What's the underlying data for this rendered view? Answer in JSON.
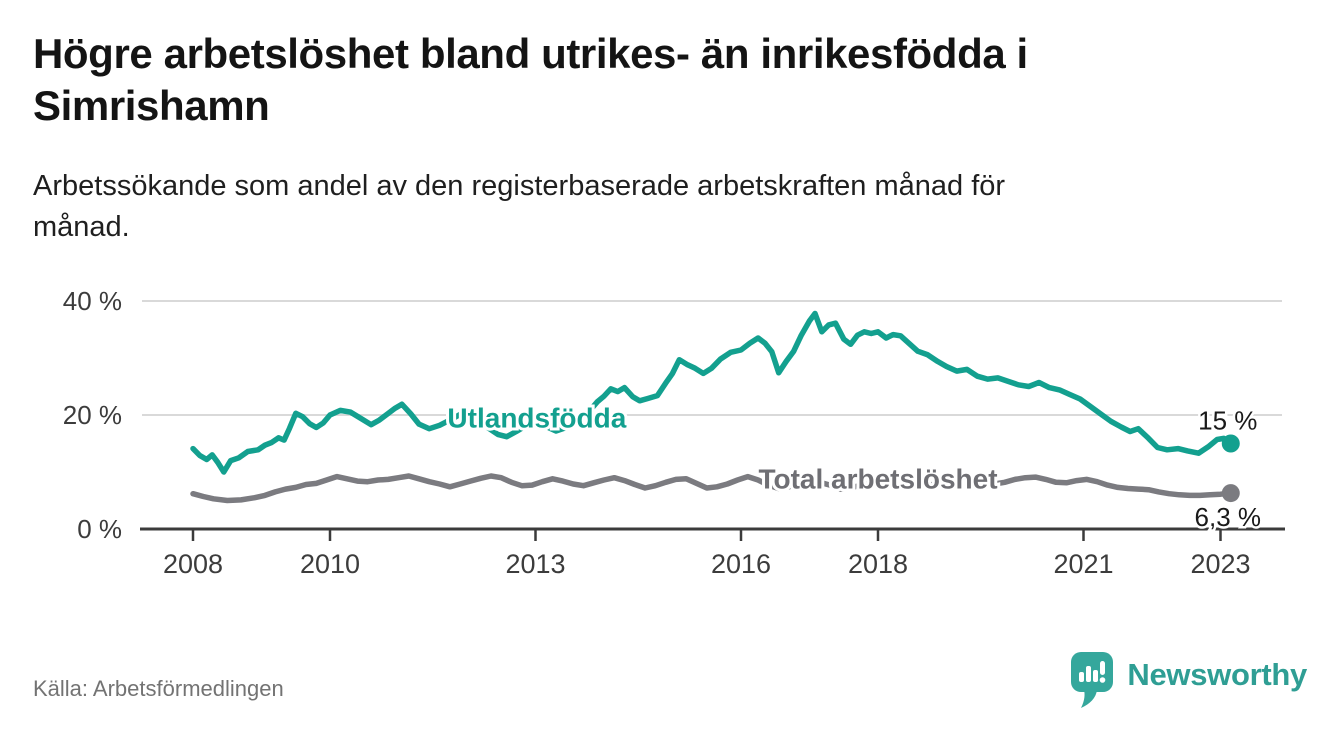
{
  "page": {
    "title": "Högre arbetslöshet bland utrikes- än inrikesfödda i Simrishamn",
    "title_lines": [
      "Högre arbetslöshet bland utrikes- än inrikesfödda i",
      "Simrishamn"
    ],
    "subtitle": "Arbetssökande som andel av den registerbaserade arbetskraften månad för månad.",
    "subtitle_lines": [
      "Arbetssökande som andel av den registerbaserade arbetskraften månad för",
      "månad."
    ],
    "source": "Källa: Arbetsförmedlingen",
    "brand": "Newsworthy"
  },
  "colors": {
    "accent_teal": "#13a08f",
    "series_gray": "#7b7b80",
    "grid": "#d9d9d9",
    "axis": "#3b3b3b",
    "tick_text": "#3c3c3c",
    "value_text": "#1a1a1a",
    "total_label": "#6f6f74",
    "logo_teal": "#35a79c",
    "source_text": "#737373"
  },
  "chart_data": {
    "type": "line",
    "title": "Högre arbetslöshet bland utrikes- än inrikesfödda i Simrishamn",
    "subtitle": "Arbetssökande som andel av den registerbaserade arbetskraften månad för månad.",
    "source": "Källa: Arbetsförmedlingen",
    "grid": "horizontal",
    "legend_position": "inline-labels",
    "xlim": [
      2007.25,
      2023.9
    ],
    "ylim": [
      0,
      42
    ],
    "x_ticks": [
      2008,
      2010,
      2013,
      2016,
      2018,
      2021,
      2023
    ],
    "y_ticks": [
      {
        "value": 0,
        "label": "0 %"
      },
      {
        "value": 20,
        "label": "20 %"
      },
      {
        "value": 40,
        "label": "40 %"
      }
    ],
    "series": [
      {
        "name": "Utlandsfödda",
        "slug": "utlandsfodda",
        "color": "#13a08f",
        "label_color": "#13a08f",
        "label_pos": {
          "year": 2013.02,
          "value": 19.6
        },
        "end_label": "15 %",
        "end_value": 15.0,
        "end_label_side": "above",
        "points": [
          [
            2008.0,
            14.1
          ],
          [
            2008.1,
            12.9
          ],
          [
            2008.2,
            12.2
          ],
          [
            2008.28,
            13.0
          ],
          [
            2008.36,
            11.7
          ],
          [
            2008.45,
            10.0
          ],
          [
            2008.55,
            12.0
          ],
          [
            2008.67,
            12.5
          ],
          [
            2008.8,
            13.6
          ],
          [
            2008.95,
            13.9
          ],
          [
            2009.05,
            14.7
          ],
          [
            2009.15,
            15.2
          ],
          [
            2009.25,
            16.0
          ],
          [
            2009.33,
            15.6
          ],
          [
            2009.41,
            17.7
          ],
          [
            2009.5,
            20.3
          ],
          [
            2009.6,
            19.7
          ],
          [
            2009.7,
            18.5
          ],
          [
            2009.8,
            17.8
          ],
          [
            2009.9,
            18.6
          ],
          [
            2010.0,
            20.0
          ],
          [
            2010.15,
            20.8
          ],
          [
            2010.3,
            20.5
          ],
          [
            2010.45,
            19.4
          ],
          [
            2010.6,
            18.3
          ],
          [
            2010.72,
            19.1
          ],
          [
            2010.84,
            20.2
          ],
          [
            2010.95,
            21.2
          ],
          [
            2011.05,
            21.9
          ],
          [
            2011.18,
            20.2
          ],
          [
            2011.3,
            18.4
          ],
          [
            2011.45,
            17.6
          ],
          [
            2011.6,
            18.2
          ],
          [
            2011.75,
            19.1
          ],
          [
            2011.9,
            20.1
          ],
          [
            2012.02,
            20.6
          ],
          [
            2012.15,
            19.4
          ],
          [
            2012.3,
            17.8
          ],
          [
            2012.45,
            16.6
          ],
          [
            2012.58,
            16.2
          ],
          [
            2012.72,
            17.1
          ],
          [
            2012.86,
            18.1
          ],
          [
            2013.0,
            18.9
          ],
          [
            2013.15,
            18.0
          ],
          [
            2013.3,
            17.2
          ],
          [
            2013.45,
            17.8
          ],
          [
            2013.6,
            18.8
          ],
          [
            2013.75,
            20.2
          ],
          [
            2013.9,
            22.3
          ],
          [
            2014.0,
            23.3
          ],
          [
            2014.1,
            24.6
          ],
          [
            2014.2,
            24.1
          ],
          [
            2014.3,
            24.8
          ],
          [
            2014.42,
            23.2
          ],
          [
            2014.52,
            22.5
          ],
          [
            2014.64,
            22.9
          ],
          [
            2014.78,
            23.4
          ],
          [
            2014.9,
            25.6
          ],
          [
            2015.0,
            27.3
          ],
          [
            2015.1,
            29.7
          ],
          [
            2015.22,
            28.8
          ],
          [
            2015.33,
            28.2
          ],
          [
            2015.45,
            27.3
          ],
          [
            2015.57,
            28.2
          ],
          [
            2015.7,
            29.8
          ],
          [
            2015.85,
            31.0
          ],
          [
            2016.0,
            31.4
          ],
          [
            2016.13,
            32.6
          ],
          [
            2016.25,
            33.5
          ],
          [
            2016.35,
            32.6
          ],
          [
            2016.45,
            31.1
          ],
          [
            2016.55,
            27.4
          ],
          [
            2016.66,
            29.4
          ],
          [
            2016.77,
            31.2
          ],
          [
            2016.88,
            34.0
          ],
          [
            2017.0,
            36.5
          ],
          [
            2017.08,
            37.8
          ],
          [
            2017.18,
            34.6
          ],
          [
            2017.28,
            35.8
          ],
          [
            2017.38,
            36.1
          ],
          [
            2017.5,
            33.3
          ],
          [
            2017.6,
            32.4
          ],
          [
            2017.7,
            34.0
          ],
          [
            2017.8,
            34.6
          ],
          [
            2017.9,
            34.3
          ],
          [
            2018.0,
            34.6
          ],
          [
            2018.12,
            33.5
          ],
          [
            2018.22,
            34.1
          ],
          [
            2018.33,
            33.9
          ],
          [
            2018.45,
            32.6
          ],
          [
            2018.58,
            31.2
          ],
          [
            2018.72,
            30.6
          ],
          [
            2018.87,
            29.4
          ],
          [
            2019.0,
            28.5
          ],
          [
            2019.15,
            27.7
          ],
          [
            2019.3,
            28.0
          ],
          [
            2019.45,
            26.8
          ],
          [
            2019.6,
            26.3
          ],
          [
            2019.75,
            26.5
          ],
          [
            2019.9,
            25.9
          ],
          [
            2020.05,
            25.3
          ],
          [
            2020.2,
            25.0
          ],
          [
            2020.35,
            25.7
          ],
          [
            2020.5,
            24.8
          ],
          [
            2020.65,
            24.4
          ],
          [
            2020.8,
            23.6
          ],
          [
            2020.95,
            22.8
          ],
          [
            2021.1,
            21.5
          ],
          [
            2021.25,
            20.2
          ],
          [
            2021.4,
            18.9
          ],
          [
            2021.55,
            17.9
          ],
          [
            2021.68,
            17.1
          ],
          [
            2021.8,
            17.6
          ],
          [
            2021.95,
            15.9
          ],
          [
            2022.08,
            14.3
          ],
          [
            2022.22,
            13.9
          ],
          [
            2022.38,
            14.1
          ],
          [
            2022.52,
            13.7
          ],
          [
            2022.68,
            13.3
          ],
          [
            2022.83,
            14.5
          ],
          [
            2022.95,
            15.7
          ],
          [
            2023.05,
            15.9
          ],
          [
            2023.15,
            15.0
          ]
        ]
      },
      {
        "name": "Total arbetslöshet",
        "slug": "total-arbetsloshet",
        "color": "#7b7b80",
        "label_color": "#6f6f74",
        "label_pos": {
          "year": 2018.0,
          "value": 8.9
        },
        "end_label": "6,3 %",
        "end_value": 6.3,
        "end_label_side": "below",
        "points": [
          [
            2008.0,
            6.2
          ],
          [
            2008.15,
            5.7
          ],
          [
            2008.3,
            5.3
          ],
          [
            2008.5,
            5.0
          ],
          [
            2008.7,
            5.1
          ],
          [
            2008.9,
            5.5
          ],
          [
            2009.05,
            5.9
          ],
          [
            2009.2,
            6.5
          ],
          [
            2009.35,
            7.0
          ],
          [
            2009.5,
            7.3
          ],
          [
            2009.65,
            7.8
          ],
          [
            2009.8,
            8.0
          ],
          [
            2009.95,
            8.6
          ],
          [
            2010.1,
            9.2
          ],
          [
            2010.25,
            8.8
          ],
          [
            2010.4,
            8.4
          ],
          [
            2010.55,
            8.3
          ],
          [
            2010.7,
            8.6
          ],
          [
            2010.85,
            8.7
          ],
          [
            2011.0,
            9.0
          ],
          [
            2011.15,
            9.3
          ],
          [
            2011.3,
            8.8
          ],
          [
            2011.45,
            8.3
          ],
          [
            2011.6,
            7.9
          ],
          [
            2011.75,
            7.4
          ],
          [
            2011.9,
            7.9
          ],
          [
            2012.05,
            8.4
          ],
          [
            2012.2,
            8.9
          ],
          [
            2012.35,
            9.3
          ],
          [
            2012.5,
            9.0
          ],
          [
            2012.65,
            8.2
          ],
          [
            2012.8,
            7.6
          ],
          [
            2012.95,
            7.7
          ],
          [
            2013.1,
            8.3
          ],
          [
            2013.25,
            8.8
          ],
          [
            2013.4,
            8.4
          ],
          [
            2013.55,
            7.9
          ],
          [
            2013.7,
            7.6
          ],
          [
            2013.85,
            8.1
          ],
          [
            2014.0,
            8.6
          ],
          [
            2014.15,
            9.0
          ],
          [
            2014.3,
            8.5
          ],
          [
            2014.45,
            7.8
          ],
          [
            2014.6,
            7.2
          ],
          [
            2014.75,
            7.6
          ],
          [
            2014.9,
            8.2
          ],
          [
            2015.05,
            8.7
          ],
          [
            2015.2,
            8.8
          ],
          [
            2015.35,
            8.0
          ],
          [
            2015.5,
            7.2
          ],
          [
            2015.65,
            7.4
          ],
          [
            2015.8,
            7.9
          ],
          [
            2015.95,
            8.6
          ],
          [
            2016.1,
            9.2
          ],
          [
            2016.25,
            8.6
          ],
          [
            2016.4,
            7.7
          ],
          [
            2016.55,
            7.1
          ],
          [
            2016.7,
            7.4
          ],
          [
            2016.85,
            8.0
          ],
          [
            2017.0,
            8.5
          ],
          [
            2017.15,
            8.2
          ],
          [
            2017.3,
            7.7
          ],
          [
            2017.45,
            7.0
          ],
          [
            2017.6,
            7.2
          ],
          [
            2017.75,
            7.7
          ],
          [
            2017.9,
            8.0
          ],
          [
            2018.05,
            8.3
          ],
          [
            2018.2,
            8.0
          ],
          [
            2018.35,
            7.6
          ],
          [
            2018.5,
            7.3
          ],
          [
            2018.65,
            7.5
          ],
          [
            2018.8,
            7.8
          ],
          [
            2018.95,
            8.1
          ],
          [
            2019.1,
            8.0
          ],
          [
            2019.25,
            7.7
          ],
          [
            2019.4,
            7.5
          ],
          [
            2019.55,
            7.7
          ],
          [
            2019.7,
            7.9
          ],
          [
            2019.85,
            8.2
          ],
          [
            2020.0,
            8.7
          ],
          [
            2020.15,
            9.0
          ],
          [
            2020.3,
            9.1
          ],
          [
            2020.45,
            8.7
          ],
          [
            2020.6,
            8.2
          ],
          [
            2020.75,
            8.1
          ],
          [
            2020.9,
            8.5
          ],
          [
            2021.05,
            8.7
          ],
          [
            2021.2,
            8.3
          ],
          [
            2021.35,
            7.7
          ],
          [
            2021.5,
            7.3
          ],
          [
            2021.65,
            7.1
          ],
          [
            2021.8,
            7.0
          ],
          [
            2021.95,
            6.9
          ],
          [
            2022.1,
            6.5
          ],
          [
            2022.25,
            6.2
          ],
          [
            2022.4,
            6.0
          ],
          [
            2022.55,
            5.9
          ],
          [
            2022.7,
            5.9
          ],
          [
            2022.85,
            6.0
          ],
          [
            2023.0,
            6.1
          ],
          [
            2023.15,
            6.3
          ]
        ]
      }
    ]
  }
}
